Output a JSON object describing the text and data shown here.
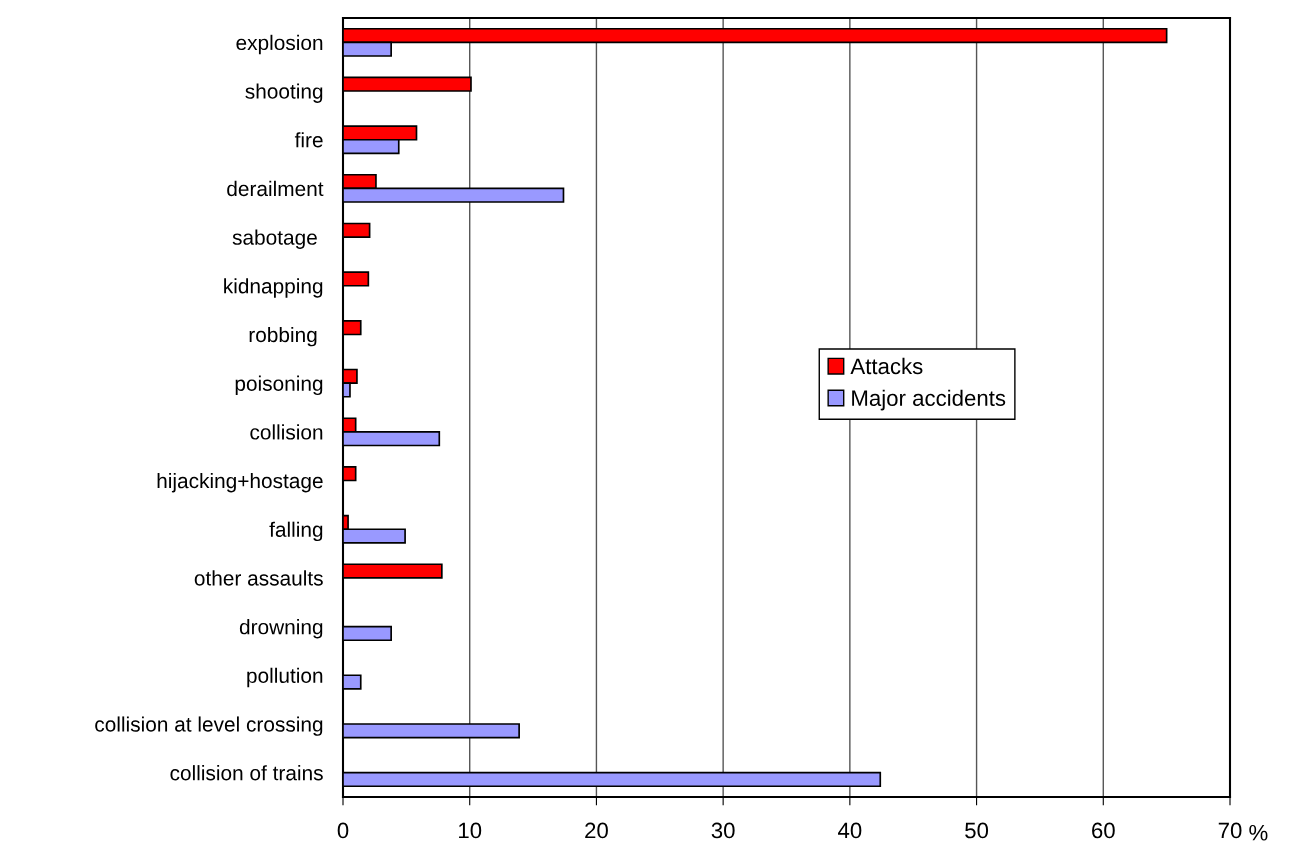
{
  "chart_data": {
    "type": "bar",
    "orientation": "horizontal",
    "xlabel": "%",
    "categories": [
      "explosion",
      "shooting",
      "fire",
      "derailment",
      "sabotage ",
      "kidnapping",
      "robbing ",
      "poisoning",
      "collision",
      "hijacking+hostage",
      "falling",
      "other assaults",
      "drowning",
      "pollution",
      "collision at level crossing",
      "collision of trains"
    ],
    "series": [
      {
        "name": "Attacks",
        "color": "#ff0000",
        "values": [
          65,
          10.1,
          5.8,
          2.6,
          2.1,
          2.0,
          1.4,
          1.1,
          1.0,
          1.0,
          0.4,
          7.8,
          null,
          null,
          null,
          null
        ]
      },
      {
        "name": "Major accidents",
        "color": "#9999ff",
        "values": [
          3.8,
          null,
          4.4,
          17.4,
          null,
          null,
          null,
          0.55,
          7.6,
          null,
          4.9,
          null,
          3.8,
          1.4,
          13.9,
          42.4
        ]
      }
    ],
    "xlim": [
      0,
      70
    ],
    "xticks": [
      0,
      10,
      20,
      30,
      40,
      50,
      60,
      70
    ],
    "grid": "x",
    "legend": "right"
  }
}
